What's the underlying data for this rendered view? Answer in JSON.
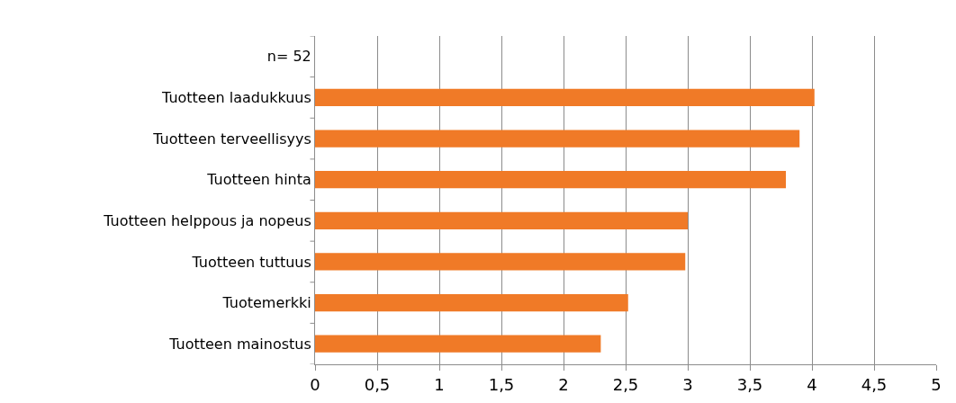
{
  "chart_data": {
    "type": "bar",
    "orientation": "horizontal",
    "categories": [
      "n= 52",
      "Tuotteen laadukkuus",
      "Tuotteen terveellisyys",
      "Tuotteen hinta",
      "Tuotteen helppous ja nopeus",
      "Tuotteen tuttuus",
      "Tuotemerkki",
      "Tuotteen mainostus"
    ],
    "values": [
      null,
      4.02,
      3.9,
      3.79,
      3.0,
      2.98,
      2.52,
      2.3
    ],
    "color": "#f07a27",
    "xlim": [
      0,
      5
    ],
    "xticks": [
      0,
      {
        "value": 0.5,
        "label": "0,5"
      },
      1,
      {
        "value": 1.5,
        "label": "1,5"
      },
      2,
      {
        "value": 2.5,
        "label": "2,5"
      },
      3,
      {
        "value": 3.5,
        "label": "3,5"
      },
      4,
      {
        "value": 4.5,
        "label": "4,5"
      },
      5
    ],
    "grid": "x"
  }
}
